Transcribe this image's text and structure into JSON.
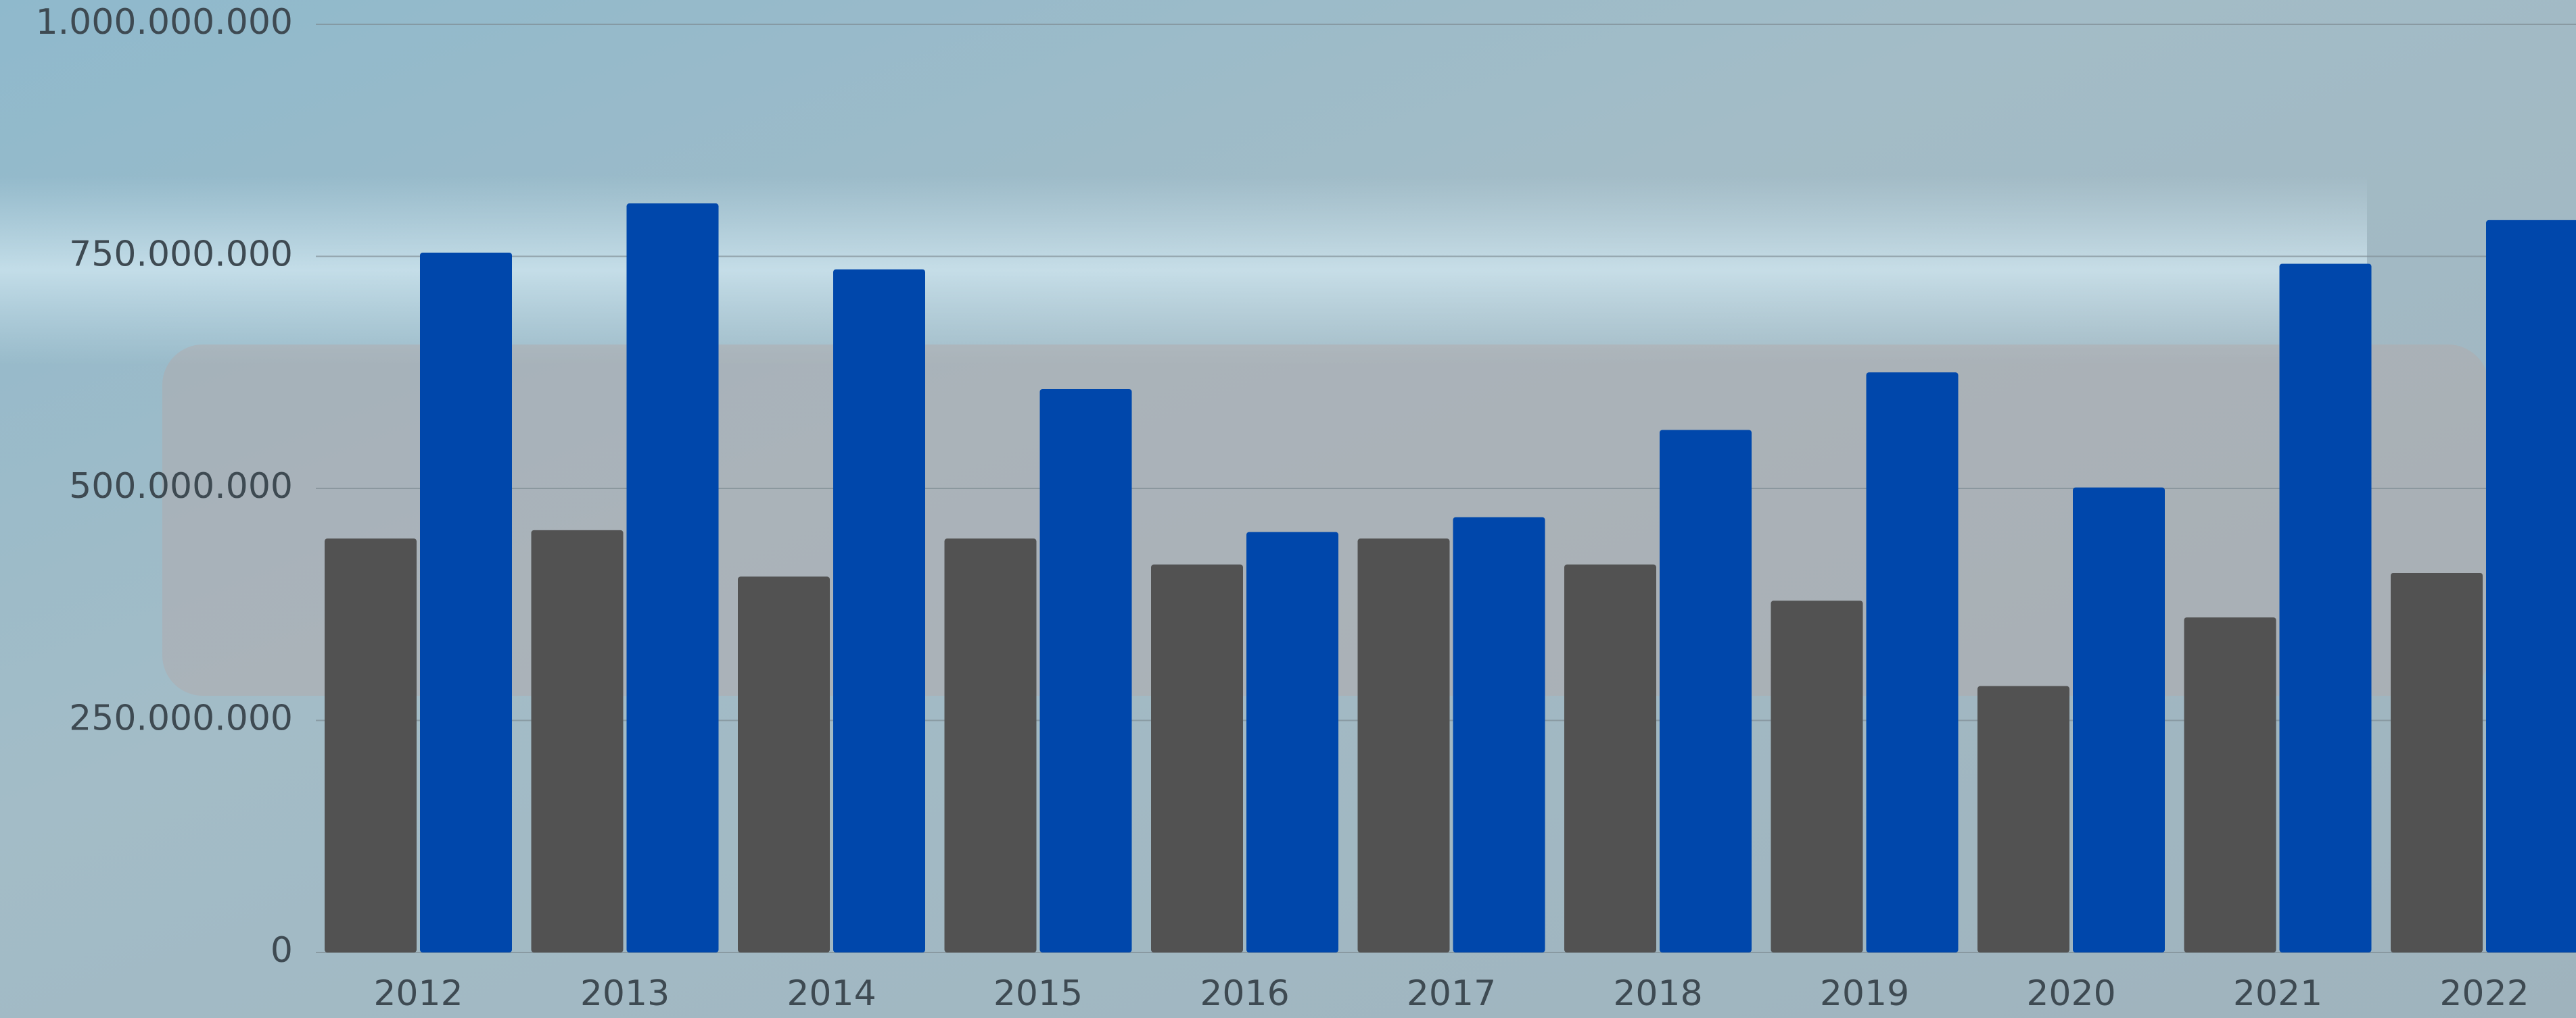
{
  "chart_data": {
    "type": "bar",
    "categories": [
      "2012",
      "2013",
      "2014",
      "2015",
      "2016",
      "2017",
      "2018",
      "2019",
      "2020",
      "2021",
      "2022"
    ],
    "series": [
      {
        "color": "#525252",
        "values": [
          446000000,
          455000000,
          405000000,
          446000000,
          418000000,
          446000000,
          418000000,
          379000000,
          287000000,
          361000000,
          409000000
        ]
      },
      {
        "color": "#0047ab",
        "values": [
          754000000,
          807000000,
          736000000,
          607000000,
          453000000,
          469000000,
          563000000,
          625000000,
          501000000,
          742000000,
          789000000
        ]
      }
    ],
    "ylim": [
      0,
      1000000000
    ],
    "yticks": [
      0,
      {
        "value": 250000000,
        "label": "250.000.000"
      },
      {
        "value": 500000000,
        "label": "500.000.000"
      },
      {
        "value": 750000000,
        "label": "750.000.000"
      },
      {
        "value": 1000000000,
        "label": "1.000.000.000"
      }
    ],
    "grid": true
  }
}
